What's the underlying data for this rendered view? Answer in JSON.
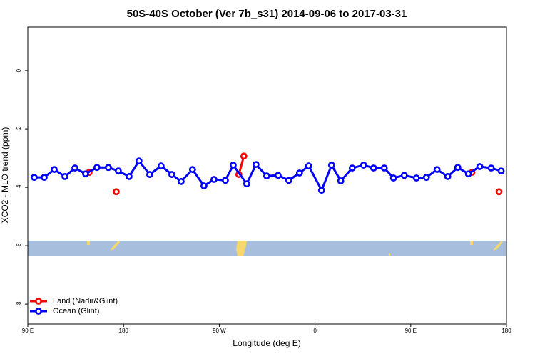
{
  "chart_data": {
    "type": "line",
    "title": "50S-40S October (Ver 7b_s31)   2014-09-06 to 2017-03-31",
    "x_label": "Longitude (deg E)",
    "y_label": "XCO2 - MLO trend (ppm)",
    "xlim": [
      90,
      540
    ],
    "ylim": [
      -8.68,
      1.49
    ],
    "xticks": [
      {
        "value": 90,
        "label": "90 E"
      },
      {
        "value": 180,
        "label": "180"
      },
      {
        "value": 270,
        "label": "90 W"
      },
      {
        "value": 360,
        "label": "0"
      },
      {
        "value": 450,
        "label": "90 E"
      },
      {
        "value": 540,
        "label": "180"
      }
    ],
    "yticks": [
      -8,
      -6,
      -4,
      -2,
      0
    ],
    "legend": "bottom-left",
    "series": [
      {
        "name": "Land (Nadir&Glint)",
        "color": "#ff0000",
        "x": [
          147.6,
          null,
          173.1,
          null,
          288.4,
          293.1,
          null,
          507.5,
          null,
          533.0
        ],
        "values": [
          -3.49,
          null,
          -4.15,
          null,
          -3.56,
          -2.93,
          null,
          -3.49,
          null,
          -4.15
        ]
      },
      {
        "name": "Ocean (Glint)",
        "color": "#0000ff",
        "x": [
          96,
          105.4,
          114.8,
          124.9,
          134.3,
          144.3,
          155.0,
          165.7,
          175.1,
          185.2,
          194.5,
          204.6,
          215.3,
          225.4,
          234.1,
          244.8,
          255.6,
          265.0,
          275.7,
          283.1,
          295.8,
          304.5,
          314.6,
          325.3,
          335.4,
          345.4,
          354.1,
          366.2,
          375.6,
          384.2,
          395.0,
          405.7,
          415.1,
          425.1,
          433.8,
          443.9,
          455.3,
          464.7,
          474.7,
          484.8,
          494.2,
          504.2,
          514.9,
          525.6,
          535.0
        ],
        "values": [
          -3.66,
          -3.66,
          -3.39,
          -3.63,
          -3.34,
          -3.54,
          -3.32,
          -3.32,
          -3.44,
          -3.63,
          -3.1,
          -3.56,
          -3.27,
          -3.56,
          -3.8,
          -3.39,
          -3.95,
          -3.73,
          -3.76,
          -3.24,
          -3.88,
          -3.22,
          -3.61,
          -3.59,
          -3.76,
          -3.51,
          -3.27,
          -4.1,
          -3.24,
          -3.78,
          -3.34,
          -3.24,
          -3.34,
          -3.34,
          -3.68,
          -3.59,
          -3.68,
          -3.66,
          -3.39,
          -3.63,
          -3.32,
          -3.54,
          -3.29,
          -3.34,
          -3.44
        ]
      }
    ]
  }
}
